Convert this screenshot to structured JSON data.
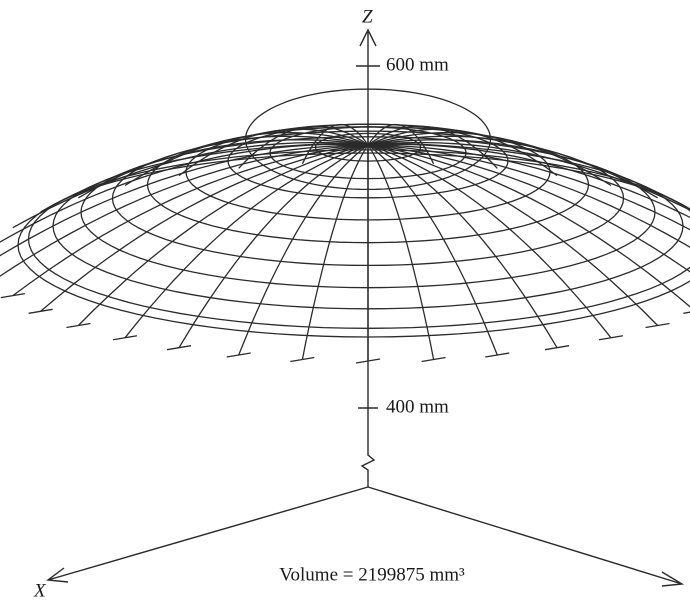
{
  "axes": {
    "z_label": "Z",
    "x_label": "X",
    "z_tick_upper": "600 mm",
    "z_tick_lower": "400 mm"
  },
  "caption": "Volume = 2199875 mm³"
}
